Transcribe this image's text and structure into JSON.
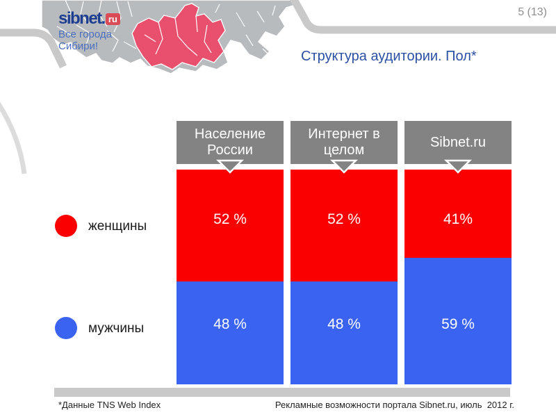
{
  "slide": {
    "page_number": "5 (13)",
    "title": "Структура аудитории. Пол*"
  },
  "logo": {
    "brand": "sibnet.",
    "tld": "ru",
    "tagline_line1": "Все города",
    "tagline_line2": "Сибири!"
  },
  "legend": {
    "items": [
      {
        "label": "женщины",
        "color": "#fb0000"
      },
      {
        "label": "мужчины",
        "color": "#3a63f1"
      }
    ]
  },
  "chart_data": {
    "type": "bar",
    "stacked": true,
    "orientation": "vertical",
    "unit": "%",
    "categories": [
      "Население России",
      "Интернет в целом",
      "Sibnet.ru"
    ],
    "series": [
      {
        "name": "женщины",
        "color": "#fb0000",
        "values": [
          52,
          52,
          41
        ],
        "labels": [
          "52 %",
          "52 %",
          "41%"
        ]
      },
      {
        "name": "мужчины",
        "color": "#3a63f1",
        "values": [
          48,
          48,
          59
        ],
        "labels": [
          "48 %",
          "48 %",
          "59 %"
        ]
      }
    ],
    "ylim": [
      0,
      100
    ],
    "grid": false,
    "legend_position": "left",
    "header_box_color": "#838383"
  },
  "footer": {
    "source": "*Данные TNS Web Index",
    "note": "Рекламные возможности портала Sibnet.ru, июль  2012 г."
  },
  "colors": {
    "title": "#2b4fa2",
    "frame_gray": "#c9c9c9",
    "map_base": "#b8bbbe",
    "map_highlight": "#e9506d",
    "logo_navy": "#1d3e90",
    "logo_box_red": "#d94b57",
    "page_number_gray": "#8f8f8f"
  }
}
